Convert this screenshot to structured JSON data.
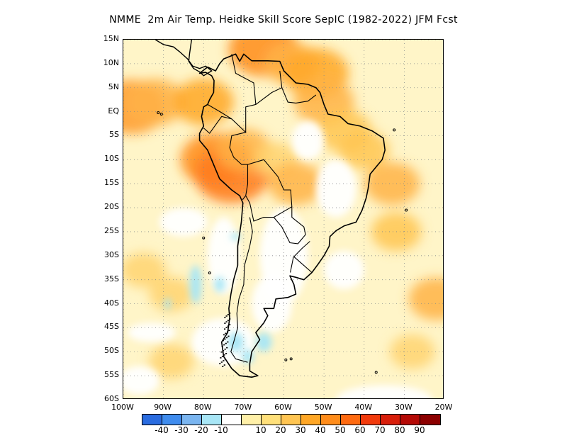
{
  "title": "NMME  2m Air Temp. Heidke Skill Score SepIC (1982-2022) JFM Fcst",
  "map": {
    "lat_range": [
      -60,
      15
    ],
    "lon_range": [
      -100,
      -20
    ],
    "lat_ticks": [
      "15N",
      "10N",
      "5N",
      "EQ",
      "5S",
      "10S",
      "15S",
      "20S",
      "25S",
      "30S",
      "35S",
      "40S",
      "45S",
      "50S",
      "55S",
      "60S"
    ],
    "lat_values": [
      15,
      10,
      5,
      0,
      -5,
      -10,
      -15,
      -20,
      -25,
      -30,
      -35,
      -40,
      -45,
      -50,
      -55,
      -60
    ],
    "lon_ticks": [
      "100W",
      "90W",
      "80W",
      "70W",
      "60W",
      "50W",
      "40W",
      "30W",
      "20W"
    ],
    "lon_values": [
      -100,
      -90,
      -80,
      -70,
      -60,
      -50,
      -40,
      -30,
      -20
    ],
    "grid": "dotted",
    "background_color": "#FFF5C8"
  },
  "colorbar": {
    "colors": [
      "#2A6CE0",
      "#3F8CEE",
      "#7AB5F0",
      "#A8E6F6",
      "#FFFFFF",
      "#FFF0A8",
      "#FFE07A",
      "#FFC552",
      "#FFA726",
      "#FF8C1A",
      "#FF6A10",
      "#F23A0C",
      "#D81E0A",
      "#B50A06",
      "#8C0000"
    ],
    "labels": [
      "-40",
      "-30",
      "-20",
      "-10",
      "10",
      "20",
      "30",
      "40",
      "50",
      "60",
      "70",
      "80",
      "90"
    ]
  },
  "features": {
    "hot_spots": [
      {
        "lon": -98,
        "lat": 1,
        "value": 55,
        "color": "#FF9A2A"
      },
      {
        "lon": -92,
        "lat": 2,
        "value": 45,
        "color": "#FFB347"
      },
      {
        "lon": -80,
        "lat": 2,
        "value": 45,
        "color": "#FFA726"
      },
      {
        "lon": -77,
        "lat": -10,
        "value": 55,
        "color": "#FF8C1A"
      },
      {
        "lon": -73,
        "lat": -13,
        "value": 60,
        "color": "#FF7A1A"
      },
      {
        "lon": -70,
        "lat": -8,
        "value": 40,
        "color": "#FFB347"
      },
      {
        "lon": -65,
        "lat": 13,
        "value": 55,
        "color": "#FF8C1A"
      },
      {
        "lon": -58,
        "lat": 10,
        "value": 40,
        "color": "#FFB347"
      },
      {
        "lon": -52,
        "lat": 8,
        "value": 50,
        "color": "#FFA726"
      },
      {
        "lon": -50,
        "lat": 2,
        "value": 45,
        "color": "#FFB347"
      },
      {
        "lon": -45,
        "lat": -4,
        "value": 40,
        "color": "#FFC552"
      },
      {
        "lon": -40,
        "lat": -8,
        "value": 35,
        "color": "#FFC552"
      },
      {
        "lon": -33,
        "lat": -15,
        "value": 40,
        "color": "#FFB347"
      },
      {
        "lon": -32,
        "lat": -25,
        "value": 35,
        "color": "#FFC552"
      },
      {
        "lon": -22,
        "lat": -39,
        "value": 40,
        "color": "#FFB347"
      },
      {
        "lon": -95,
        "lat": -33,
        "value": 30,
        "color": "#FFD470"
      },
      {
        "lon": -88,
        "lat": -38,
        "value": 30,
        "color": "#FFD470"
      },
      {
        "lon": -88,
        "lat": -52,
        "value": 30,
        "color": "#FFD470"
      },
      {
        "lon": -28,
        "lat": -50,
        "value": 30,
        "color": "#FFD470"
      },
      {
        "lon": -62,
        "lat": -10,
        "value": 30,
        "color": "#FFD470"
      },
      {
        "lon": -57,
        "lat": -15,
        "value": 40,
        "color": "#FFB347"
      }
    ],
    "white_areas": [
      {
        "lon": -54,
        "lat": -6,
        "rx": 4,
        "ry": 4
      },
      {
        "lon": -47,
        "lat": -16,
        "rx": 5,
        "ry": 6
      },
      {
        "lon": -60,
        "lat": -30,
        "rx": 6,
        "ry": 10
      },
      {
        "lon": -63,
        "lat": -40,
        "rx": 5,
        "ry": 6
      },
      {
        "lon": -75,
        "lat": -30,
        "rx": 4,
        "ry": 8
      },
      {
        "lon": -45,
        "lat": -33,
        "rx": 5,
        "ry": 4
      },
      {
        "lon": -85,
        "lat": -23,
        "rx": 6,
        "ry": 3
      },
      {
        "lon": -35,
        "lat": -60,
        "rx": 12,
        "ry": 3
      },
      {
        "lon": -75,
        "lat": -48,
        "rx": 8,
        "ry": 5
      },
      {
        "lon": -93,
        "lat": -46,
        "rx": 6,
        "ry": 2
      },
      {
        "lon": -96,
        "lat": -56,
        "rx": 5,
        "ry": 3
      }
    ],
    "cyan_areas": [
      {
        "lon": -82,
        "lat": -36,
        "rx": 1.5,
        "ry": 4
      },
      {
        "lon": -72,
        "lat": -48,
        "rx": 2,
        "ry": 2
      },
      {
        "lon": -65,
        "lat": -48,
        "rx": 2,
        "ry": 2
      },
      {
        "lon": -69,
        "lat": -51,
        "rx": 1.5,
        "ry": 1.5
      },
      {
        "lon": -76,
        "lat": -36,
        "rx": 1.3,
        "ry": 1.6
      },
      {
        "lon": -72,
        "lat": -26,
        "rx": 1.3,
        "ry": 0.7
      },
      {
        "lon": -89,
        "lat": -40,
        "rx": 0.8,
        "ry": 1.2
      }
    ]
  }
}
